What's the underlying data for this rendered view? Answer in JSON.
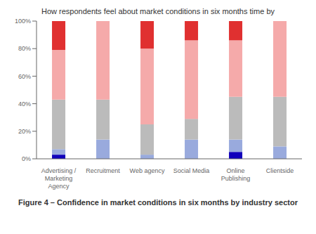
{
  "chart_data": {
    "type": "bar",
    "title": "How respondents feel about market conditions in six months time by",
    "caption": "Figure 4 – Confidence in market conditions in six months by industry sector",
    "categories": [
      "Advertising /\nMarketing\nAgency",
      "Recruitment",
      "Web agency",
      "Social Media",
      "Online\nPublishing",
      "Clientside"
    ],
    "series": [
      {
        "color": "#1100BB",
        "values": [
          3,
          0,
          0,
          0,
          5,
          0
        ]
      },
      {
        "color": "#99AADD",
        "values": [
          4,
          14,
          3,
          14,
          9,
          9
        ]
      },
      {
        "color": "#BBBBBB",
        "values": [
          36,
          29,
          22,
          15,
          31,
          36
        ]
      },
      {
        "color": "#F5AAAA",
        "values": [
          36,
          57,
          55,
          57,
          41,
          55
        ]
      },
      {
        "color": "#E03030",
        "values": [
          21,
          0,
          20,
          14,
          14,
          0
        ]
      }
    ],
    "stacked": true,
    "grid": false,
    "ylim": [
      0,
      100
    ],
    "yticks": [
      {
        "value": 0,
        "label": "0%"
      },
      {
        "value": 20,
        "label": "20%"
      },
      {
        "value": 40,
        "label": "40%"
      },
      {
        "value": 60,
        "label": "60%"
      },
      {
        "value": 80,
        "label": "80%"
      },
      {
        "value": 100,
        "label": "100%"
      }
    ]
  }
}
